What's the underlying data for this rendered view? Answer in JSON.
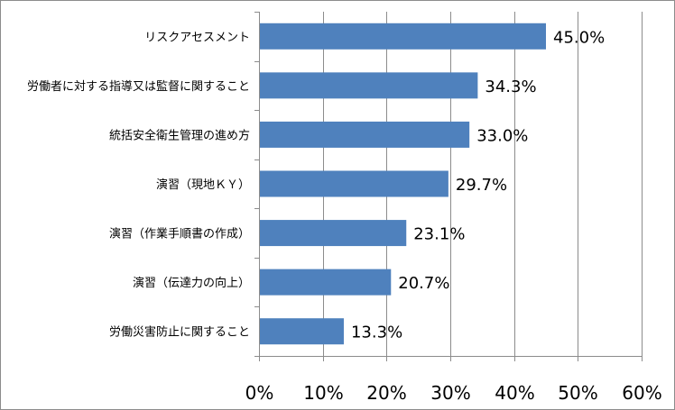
{
  "chart_data": {
    "type": "bar",
    "orientation": "horizontal",
    "categories": [
      "リスクアセスメント",
      "労働者に対する指導又は監督に関すること",
      "統括安全衛生管理の進め方",
      "演習（現地ＫＹ）",
      "演習（作業手順書の作成）",
      "演習（伝達力の向上）",
      "労働災害防止に関すること"
    ],
    "values": [
      45.0,
      34.3,
      33.0,
      29.7,
      23.1,
      20.7,
      13.3
    ],
    "data_labels": [
      "45.0%",
      "34.3%",
      "33.0%",
      "29.7%",
      "23.1%",
      "20.7%",
      "13.3%"
    ],
    "x_ticks": [
      "0%",
      "10%",
      "20%",
      "30%",
      "40%",
      "50%",
      "60%"
    ],
    "xlim": [
      0,
      60
    ],
    "grid": "vertical",
    "legend": "none",
    "title": "",
    "xlabel": "",
    "ylabel": "",
    "colors": {
      "bar": "#4f81bd",
      "grid": "#8c8c8c",
      "axis": "#8c8c8c",
      "text": "#000000"
    }
  }
}
